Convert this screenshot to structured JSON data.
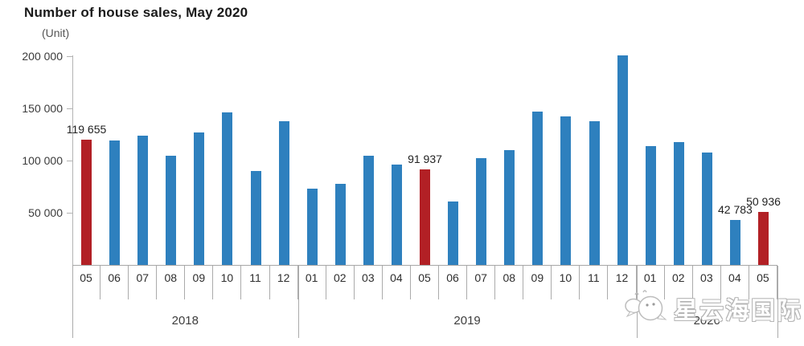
{
  "title": "Number of house sales, May 2020",
  "unit_label": "(Unit)",
  "colors": {
    "bar_blue": "#2e80be",
    "bar_red": "#b22025",
    "axis_gray": "#ababab"
  },
  "watermark": {
    "icon": "whale-icon",
    "text": "星云海国际"
  },
  "chart_data": {
    "type": "bar",
    "title": "Number of house sales, May 2020",
    "ylabel": "(Unit)",
    "ylim": [
      0,
      200000
    ],
    "grid": false,
    "yticks": [
      {
        "value": 50000,
        "label": "50 000"
      },
      {
        "value": 100000,
        "label": "100 000"
      },
      {
        "value": 150000,
        "label": "150 000"
      },
      {
        "value": 200000,
        "label": "200 000"
      }
    ],
    "categories": [
      "05",
      "06",
      "07",
      "08",
      "09",
      "10",
      "11",
      "12",
      "01",
      "02",
      "03",
      "04",
      "05",
      "06",
      "07",
      "08",
      "09",
      "10",
      "11",
      "12",
      "01",
      "02",
      "03",
      "04",
      "05"
    ],
    "year_groups": [
      {
        "label": "2018",
        "span": 8
      },
      {
        "label": "2019",
        "span": 12
      },
      {
        "label": "2020",
        "span": 5
      }
    ],
    "values": [
      119655,
      119000,
      124000,
      105000,
      127000,
      146000,
      90000,
      138000,
      73000,
      78000,
      105000,
      96000,
      91937,
      61000,
      102000,
      110000,
      147000,
      142000,
      138000,
      201000,
      114000,
      118000,
      108000,
      42783,
      50936
    ],
    "highlight_indices": [
      0,
      12,
      24
    ],
    "data_labels": [
      {
        "index": 0,
        "text": "119 655"
      },
      {
        "index": 12,
        "text": "91 937"
      },
      {
        "index": 23,
        "text": "42 783"
      },
      {
        "index": 24,
        "text": "50 936"
      }
    ]
  }
}
